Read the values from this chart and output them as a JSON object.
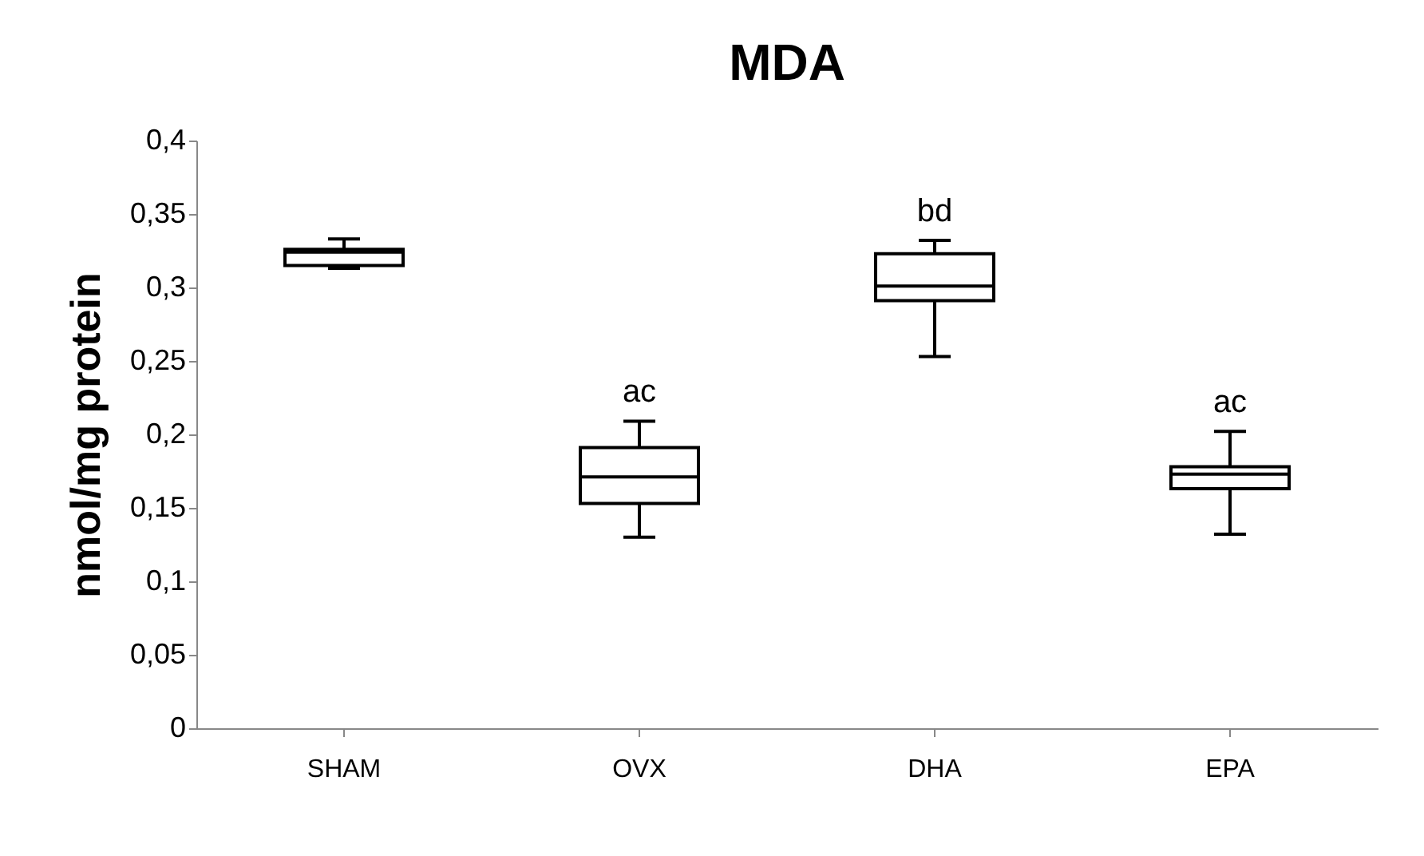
{
  "chart_data": {
    "type": "box",
    "title": "MDA",
    "ylabel": "nmol/mg protein",
    "categories": [
      "SHAM",
      "OVX",
      "DHA",
      "EPA"
    ],
    "boxes": [
      {
        "low": 0.313,
        "q1": 0.315,
        "median": 0.324,
        "q3": 0.326,
        "high": 0.333
      },
      {
        "low": 0.13,
        "q1": 0.153,
        "median": 0.171,
        "q3": 0.191,
        "high": 0.209
      },
      {
        "low": 0.253,
        "q1": 0.291,
        "median": 0.301,
        "q3": 0.323,
        "high": 0.332
      },
      {
        "low": 0.132,
        "q1": 0.163,
        "median": 0.173,
        "q3": 0.178,
        "high": 0.202
      }
    ],
    "ylim": [
      0,
      0.4
    ],
    "yticks": [
      0,
      {
        "value": 0.05,
        "label": "0,05"
      },
      {
        "value": 0.1,
        "label": "0,1"
      },
      {
        "value": 0.15,
        "label": "0,15"
      },
      {
        "value": 0.2,
        "label": "0,2"
      },
      {
        "value": 0.25,
        "label": "0,25"
      },
      {
        "value": 0.3,
        "label": "0,3"
      },
      {
        "value": 0.35,
        "label": "0,35"
      },
      {
        "value": 0.4,
        "label": "0,4"
      }
    ],
    "annotations": [
      {
        "text": "ac",
        "x": "OVX",
        "y": 0.209
      },
      {
        "text": "bd",
        "x": "DHA",
        "y": 0.332
      },
      {
        "text": "ac",
        "x": "EPA",
        "y": 0.202
      }
    ],
    "grid": false,
    "color": "#ffffff"
  }
}
